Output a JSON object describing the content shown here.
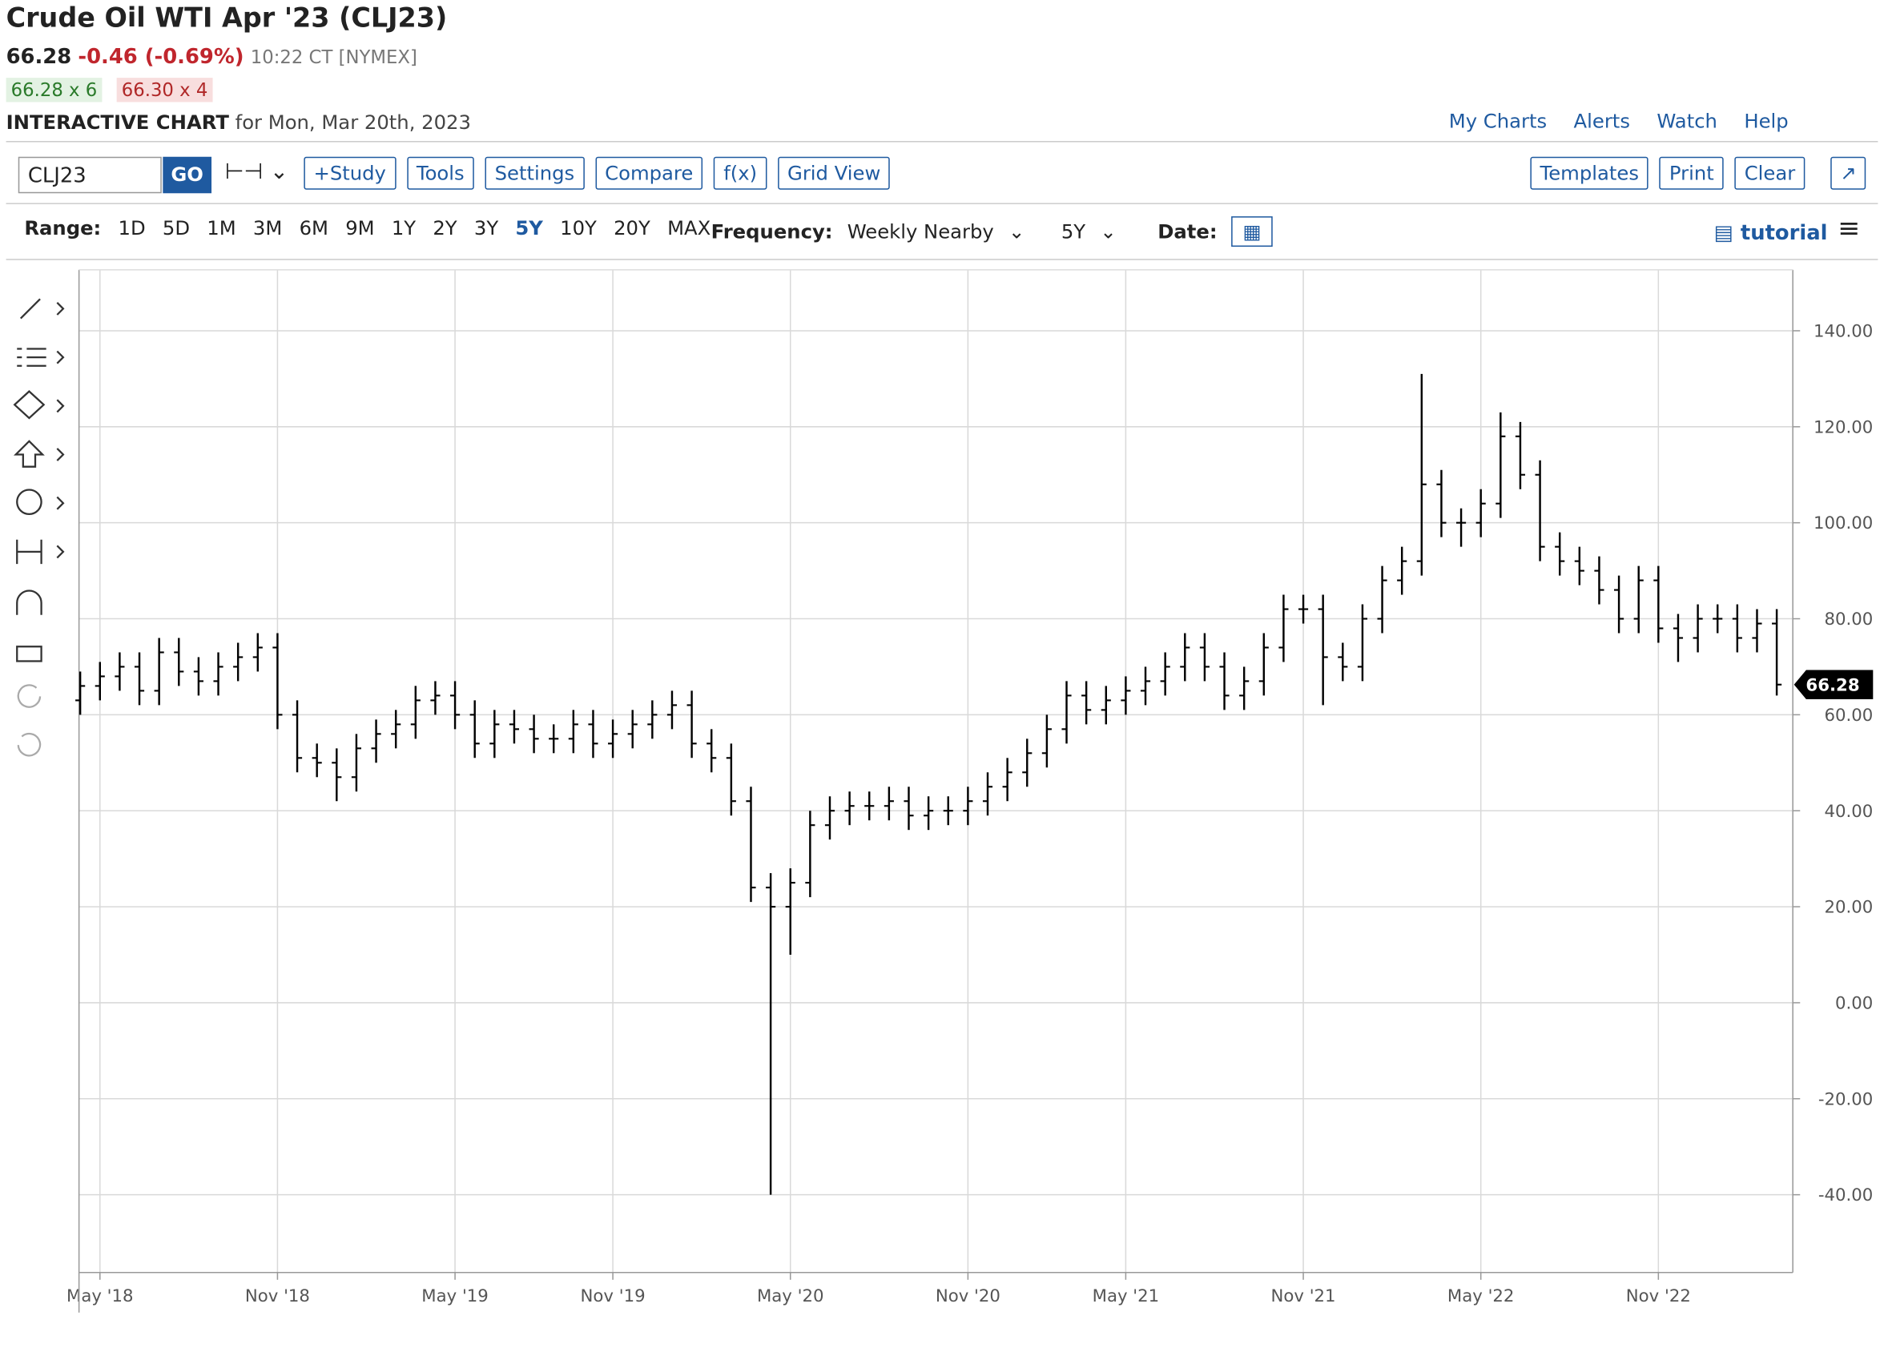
{
  "header": {
    "title": "Crude Oil WTI Apr '23 (CLJ23)",
    "last": "66.28",
    "change": "-0.46 (-0.69%)",
    "time": "10:22 CT [NYMEX]",
    "bid": "66.28 x 6",
    "ask": "66.30 x 4",
    "chart_label": "INTERACTIVE CHART",
    "chart_date": "for Mon, Mar 20th, 2023",
    "links": [
      "My Charts",
      "Alerts",
      "Watch",
      "Help"
    ]
  },
  "toolbar": {
    "symbol": "CLJ23",
    "go": "GO",
    "buttons": [
      "+Study",
      "Tools",
      "Settings",
      "Compare",
      "f(x)",
      "Grid View"
    ],
    "right_buttons": [
      "Templates",
      "Print",
      "Clear"
    ]
  },
  "controls": {
    "range_label": "Range:",
    "ranges": [
      {
        "label": "1D"
      },
      {
        "label": "5D"
      },
      {
        "label": "1M"
      },
      {
        "label": "3M"
      },
      {
        "label": "6M"
      },
      {
        "label": "9M"
      },
      {
        "label": "1Y"
      },
      {
        "label": "2Y"
      },
      {
        "label": "3Y"
      },
      {
        "label": "5Y",
        "selected": true
      },
      {
        "label": "10Y"
      },
      {
        "label": "20Y"
      },
      {
        "label": "MAX"
      }
    ],
    "frequency_label": "Frequency:",
    "frequency": "Weekly Nearby",
    "period": "5Y",
    "date_label": "Date:",
    "tutorial": "tutorial"
  },
  "chart_data": {
    "type": "ohlc",
    "color": "#000000",
    "grid": true,
    "categories": [
      null,
      "May '18",
      null,
      null,
      null,
      null,
      null,
      null,
      null,
      null,
      "Nov '18",
      null,
      null,
      null,
      null,
      null,
      null,
      null,
      null,
      "May '19",
      null,
      null,
      null,
      null,
      null,
      null,
      null,
      "Nov '19",
      null,
      null,
      null,
      null,
      null,
      null,
      null,
      null,
      "May '20",
      null,
      null,
      null,
      null,
      null,
      null,
      null,
      null,
      "Nov '20",
      null,
      null,
      null,
      null,
      null,
      null,
      null,
      "May '21",
      null,
      null,
      null,
      null,
      null,
      null,
      null,
      null,
      "Nov '21",
      null,
      null,
      null,
      null,
      null,
      null,
      null,
      null,
      "May '22",
      null,
      null,
      null,
      null,
      null,
      null,
      null,
      null,
      "Nov '22",
      null,
      null,
      null,
      null,
      null,
      null
    ],
    "open": [
      63,
      66,
      68,
      70,
      65,
      73,
      69,
      67,
      70,
      72,
      74,
      60,
      51,
      50,
      47,
      53,
      56,
      58,
      63,
      64,
      60,
      54,
      58,
      57,
      55,
      55,
      58,
      54,
      56,
      58,
      60,
      62,
      54,
      51,
      42,
      24,
      20,
      25,
      37,
      40,
      41,
      41,
      42,
      39,
      40,
      40,
      42,
      45,
      48,
      52,
      57,
      64,
      61,
      63,
      65,
      67,
      70,
      74,
      70,
      64,
      67,
      74,
      82,
      82,
      72,
      70,
      80,
      88,
      92,
      108,
      100,
      100,
      104,
      118,
      110,
      95,
      92,
      90,
      86,
      80,
      88,
      78,
      76,
      80,
      80,
      76,
      79
    ],
    "high": [
      69,
      71,
      73,
      73,
      76,
      76,
      72,
      73,
      75,
      77,
      77,
      63,
      54,
      53,
      56,
      59,
      61,
      66,
      67,
      67,
      63,
      61,
      61,
      60,
      58,
      61,
      61,
      59,
      61,
      63,
      65,
      65,
      57,
      54,
      45,
      27,
      28,
      40,
      43,
      44,
      44,
      45,
      45,
      43,
      43,
      45,
      48,
      51,
      55,
      60,
      67,
      67,
      66,
      68,
      70,
      73,
      77,
      77,
      73,
      70,
      77,
      85,
      85,
      85,
      75,
      83,
      91,
      95,
      131,
      111,
      103,
      107,
      123,
      121,
      113,
      98,
      95,
      93,
      89,
      91,
      91,
      81,
      83,
      83,
      83,
      82,
      82
    ],
    "low": [
      60,
      63,
      65,
      62,
      62,
      66,
      64,
      64,
      67,
      69,
      57,
      48,
      47,
      42,
      44,
      50,
      53,
      55,
      60,
      57,
      51,
      51,
      54,
      52,
      52,
      52,
      51,
      51,
      53,
      55,
      57,
      51,
      48,
      39,
      21,
      -40,
      10,
      22,
      34,
      37,
      38,
      38,
      36,
      36,
      37,
      37,
      39,
      42,
      45,
      49,
      54,
      58,
      58,
      60,
      62,
      64,
      67,
      67,
      61,
      61,
      64,
      71,
      79,
      62,
      67,
      67,
      77,
      85,
      89,
      97,
      95,
      97,
      101,
      107,
      92,
      89,
      87,
      83,
      77,
      77,
      75,
      71,
      73,
      77,
      73,
      73,
      64
    ],
    "close": [
      66,
      68,
      70,
      65,
      73,
      69,
      67,
      70,
      72,
      74,
      60,
      51,
      50,
      47,
      53,
      56,
      58,
      63,
      64,
      60,
      54,
      58,
      57,
      55,
      55,
      58,
      54,
      56,
      58,
      60,
      62,
      54,
      51,
      42,
      24,
      20,
      25,
      37,
      40,
      41,
      41,
      42,
      39,
      40,
      40,
      42,
      45,
      48,
      52,
      57,
      64,
      61,
      63,
      65,
      67,
      70,
      74,
      70,
      64,
      67,
      74,
      82,
      82,
      72,
      70,
      80,
      88,
      92,
      108,
      100,
      100,
      104,
      118,
      110,
      95,
      92,
      90,
      86,
      80,
      88,
      78,
      76,
      80,
      80,
      76,
      79,
      66.28
    ],
    "ylim": [
      -56.2,
      152.7
    ],
    "yticks": [
      {
        "value": -40,
        "label": "-40.00"
      },
      {
        "value": -20,
        "label": "-20.00"
      },
      {
        "value": 0,
        "label": "0.00"
      },
      {
        "value": 20,
        "label": "20.00"
      },
      {
        "value": 40,
        "label": "40.00"
      },
      {
        "value": 60,
        "label": "60.00"
      },
      {
        "value": 80,
        "label": "80.00"
      },
      {
        "value": 100,
        "label": "100.00"
      },
      {
        "value": 120,
        "label": "120.00"
      },
      {
        "value": 140,
        "label": "140.00"
      }
    ]
  }
}
